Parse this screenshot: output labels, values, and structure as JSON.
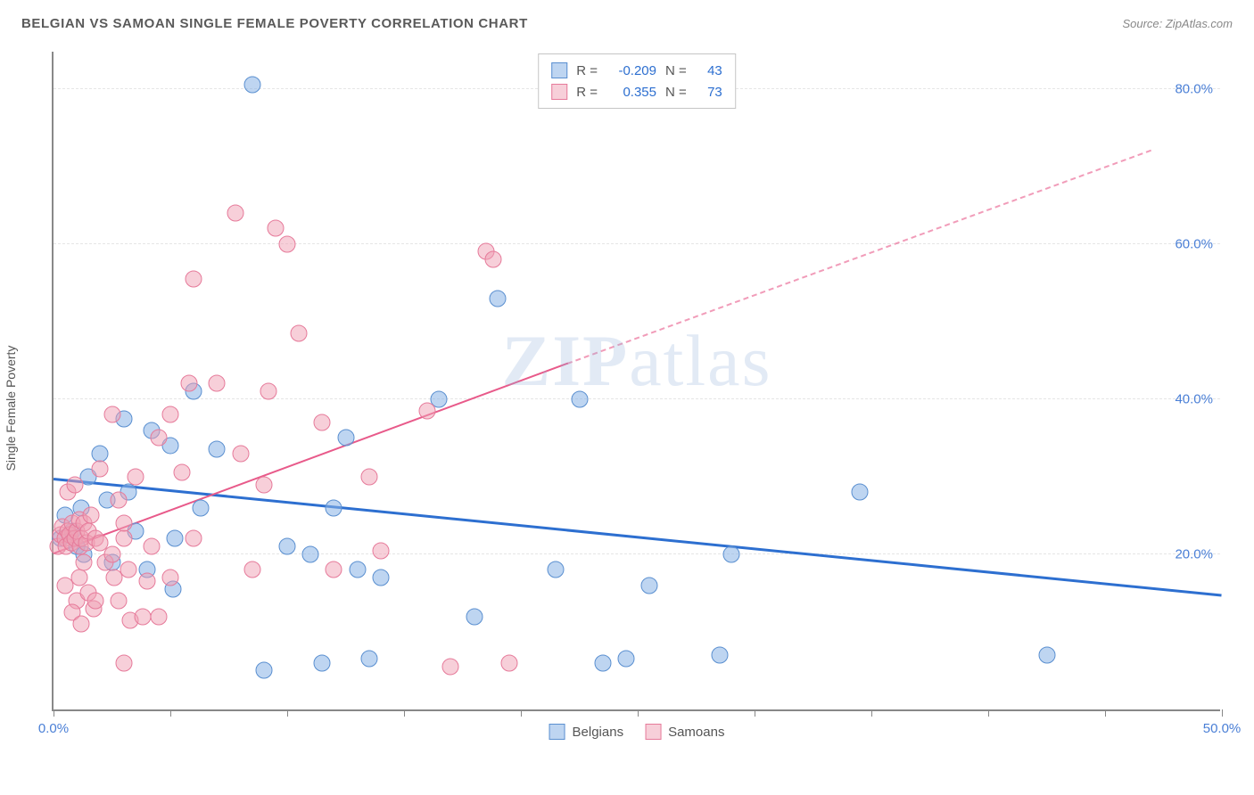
{
  "title": "BELGIAN VS SAMOAN SINGLE FEMALE POVERTY CORRELATION CHART",
  "source_prefix": "Source: ",
  "source_link": "ZipAtlas.com",
  "ylabel": "Single Female Poverty",
  "watermark_bold": "ZIP",
  "watermark_rest": "atlas",
  "chart": {
    "type": "scatter",
    "xlim": [
      0,
      50
    ],
    "ylim": [
      0,
      85
    ],
    "x_ticks": [
      0,
      5,
      10,
      15,
      20,
      25,
      30,
      35,
      40,
      45,
      50
    ],
    "x_tick_labels": {
      "0": "0.0%",
      "50": "50.0%"
    },
    "y_gridlines": [
      20,
      40,
      60,
      80
    ],
    "y_tick_labels": [
      "20.0%",
      "40.0%",
      "60.0%",
      "80.0%"
    ],
    "background_color": "#ffffff",
    "grid_color": "#e5e5e5",
    "axis_color": "#888888",
    "tick_label_color": "#4a7fd6",
    "series": [
      {
        "name": "Belgians",
        "color_fill": "rgba(137,178,230,0.55)",
        "color_stroke": "#5a8fd0",
        "trend_color": "#2d6fd0",
        "R": "-0.209",
        "N": "43",
        "trend": {
          "x1": 0,
          "y1": 29.5,
          "x2": 50,
          "y2": 14.5
        },
        "points": [
          [
            0.3,
            22
          ],
          [
            0.5,
            25
          ],
          [
            0.8,
            23
          ],
          [
            1.0,
            21
          ],
          [
            1.2,
            26
          ],
          [
            1.3,
            20
          ],
          [
            1.5,
            30
          ],
          [
            2.0,
            33
          ],
          [
            2.3,
            27
          ],
          [
            2.5,
            19
          ],
          [
            3.0,
            37.5
          ],
          [
            3.2,
            28
          ],
          [
            3.5,
            23
          ],
          [
            4.0,
            18
          ],
          [
            4.2,
            36
          ],
          [
            5.0,
            34
          ],
          [
            5.1,
            15.5
          ],
          [
            5.2,
            22
          ],
          [
            6.0,
            41
          ],
          [
            6.3,
            26
          ],
          [
            7.0,
            33.5
          ],
          [
            8.5,
            80.5
          ],
          [
            9.0,
            5
          ],
          [
            10.0,
            21
          ],
          [
            11.0,
            20
          ],
          [
            11.5,
            6
          ],
          [
            12.0,
            26
          ],
          [
            12.5,
            35
          ],
          [
            13.0,
            18
          ],
          [
            13.5,
            6.5
          ],
          [
            14.0,
            17
          ],
          [
            16.5,
            40
          ],
          [
            18.0,
            12
          ],
          [
            19.0,
            53
          ],
          [
            21.5,
            18
          ],
          [
            22.5,
            40
          ],
          [
            23.5,
            6
          ],
          [
            24.5,
            6.5
          ],
          [
            25.5,
            16
          ],
          [
            34.5,
            28
          ],
          [
            29.0,
            20
          ],
          [
            42.5,
            7
          ],
          [
            28.5,
            7
          ]
        ]
      },
      {
        "name": "Samoans",
        "color_fill": "rgba(240,160,180,0.50)",
        "color_stroke": "#e67a9a",
        "trend_color": "#e85a8a",
        "R": "0.355",
        "N": "73",
        "trend_solid": {
          "x1": 0,
          "y1": 20,
          "x2": 22,
          "y2": 44.5
        },
        "trend_dash": {
          "x1": 22,
          "y1": 44.5,
          "x2": 47,
          "y2": 72
        },
        "points": [
          [
            0.2,
            21
          ],
          [
            0.3,
            22.5
          ],
          [
            0.4,
            23.5
          ],
          [
            0.5,
            22
          ],
          [
            0.55,
            21
          ],
          [
            0.6,
            23
          ],
          [
            0.7,
            22.5
          ],
          [
            0.75,
            21.5
          ],
          [
            0.8,
            24
          ],
          [
            0.9,
            22
          ],
          [
            1.0,
            23
          ],
          [
            1.1,
            24.5
          ],
          [
            1.15,
            21
          ],
          [
            1.2,
            22
          ],
          [
            1.3,
            24
          ],
          [
            1.4,
            21.5
          ],
          [
            1.5,
            23
          ],
          [
            1.6,
            25
          ],
          [
            1.8,
            22
          ],
          [
            0.6,
            28
          ],
          [
            0.9,
            29
          ],
          [
            1.0,
            14
          ],
          [
            1.1,
            17
          ],
          [
            1.3,
            19
          ],
          [
            1.5,
            15
          ],
          [
            0.5,
            16
          ],
          [
            0.8,
            12.5
          ],
          [
            1.2,
            11
          ],
          [
            1.7,
            13
          ],
          [
            2.0,
            21.5
          ],
          [
            2.2,
            19
          ],
          [
            2.5,
            20
          ],
          [
            2.6,
            17
          ],
          [
            2.8,
            14
          ],
          [
            3.0,
            22
          ],
          [
            3.2,
            18
          ],
          [
            3.3,
            11.5
          ],
          [
            3.5,
            30
          ],
          [
            3.0,
            24
          ],
          [
            3.8,
            12
          ],
          [
            4.0,
            16.5
          ],
          [
            4.2,
            21
          ],
          [
            4.5,
            12
          ],
          [
            5.0,
            17
          ],
          [
            5.5,
            30.5
          ],
          [
            5.0,
            38
          ],
          [
            6.0,
            22
          ],
          [
            6.0,
            55.5
          ],
          [
            7.0,
            42
          ],
          [
            7.8,
            64
          ],
          [
            8.0,
            33
          ],
          [
            8.5,
            18
          ],
          [
            9.0,
            29
          ],
          [
            9.2,
            41
          ],
          [
            9.5,
            62
          ],
          [
            10.5,
            48.5
          ],
          [
            10.0,
            60
          ],
          [
            11.5,
            37
          ],
          [
            12.0,
            18
          ],
          [
            13.5,
            30
          ],
          [
            14.0,
            20.5
          ],
          [
            16.0,
            38.5
          ],
          [
            17.0,
            5.5
          ],
          [
            18.5,
            59
          ],
          [
            18.8,
            58
          ],
          [
            19.5,
            6
          ],
          [
            3.0,
            6
          ],
          [
            4.5,
            35
          ],
          [
            5.8,
            42
          ],
          [
            2.0,
            31
          ],
          [
            2.5,
            38
          ],
          [
            1.8,
            14
          ],
          [
            2.8,
            27
          ]
        ]
      }
    ]
  },
  "legend_stats": [
    {
      "swatch": "blue",
      "R": "-0.209",
      "N": "43"
    },
    {
      "swatch": "pink",
      "R": "0.355",
      "N": "73"
    }
  ],
  "bottom_legend": [
    {
      "swatch": "blue",
      "label": "Belgians"
    },
    {
      "swatch": "pink",
      "label": "Samoans"
    }
  ],
  "R_label": "R =",
  "N_label": "N ="
}
